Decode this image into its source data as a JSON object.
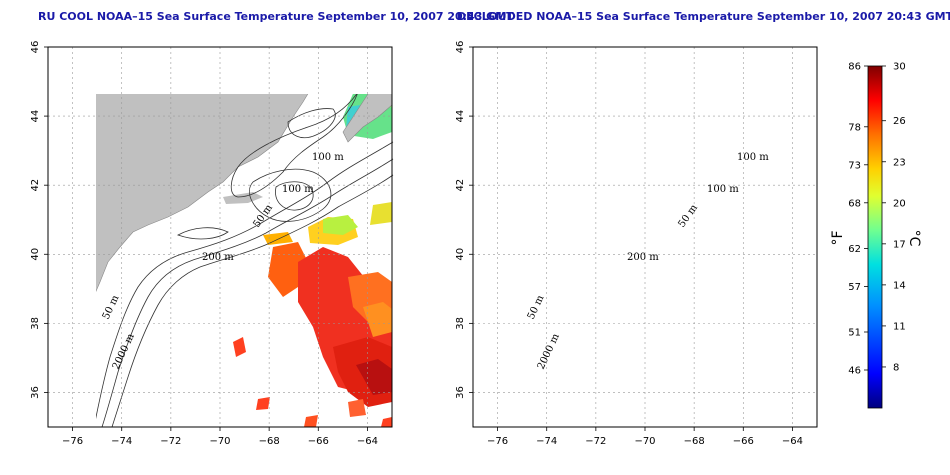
{
  "panels": [
    {
      "title": "RU COOL NOAA–15 Sea Surface Temperature September 10, 2007 20:43 GMT"
    },
    {
      "title": "DECLOUDED NOAA–15 Sea Surface Temperature September 10, 2007 20:43 GMT"
    }
  ],
  "map": {
    "lon_ticks": [
      "−76",
      "−74",
      "−72",
      "−70",
      "−68",
      "−66",
      "−64"
    ],
    "lat_ticks": [
      "36",
      "38",
      "40",
      "42",
      "44",
      "46"
    ],
    "lon_range": [
      -77,
      -63
    ],
    "lat_range": [
      35,
      46
    ],
    "land_color": "#c0c0c0",
    "grid": "dotted"
  },
  "contours": {
    "labels": [
      "100 m",
      "100 m",
      "50 m",
      "200 m",
      "50 m",
      "2000 m"
    ]
  },
  "colorbar": {
    "fahrenheit_ticks": [
      "86",
      "78",
      "73",
      "68",
      "62",
      "57",
      "51",
      "46"
    ],
    "celsius_ticks": [
      "30",
      "26",
      "23",
      "20",
      "17",
      "14",
      "11",
      "8"
    ],
    "fahrenheit_unit": "°F",
    "celsius_unit": "°C",
    "range_c": [
      5,
      30
    ],
    "colors": [
      "#00007f",
      "#0000ff",
      "#0080ff",
      "#00ffff",
      "#80ff80",
      "#ffff00",
      "#ff8000",
      "#ff0000",
      "#7f0000"
    ]
  }
}
